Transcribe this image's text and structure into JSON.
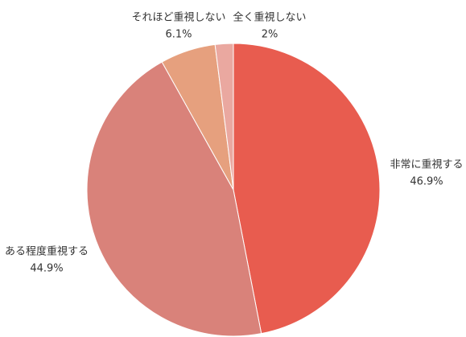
{
  "chart_data": {
    "type": "pie",
    "categories": [
      "非常に重視する",
      "ある程度重視する",
      "それほど重視しない",
      "全く重視しない"
    ],
    "values": [
      46.9,
      44.9,
      6.1,
      2
    ],
    "value_labels": [
      "46.9%",
      "44.9%",
      "6.1%",
      "2%"
    ],
    "colors": [
      "#e85c4f",
      "#d9827a",
      "#e6a07e",
      "#eaa8a0"
    ],
    "start_angle": "top",
    "direction": "clockwise"
  }
}
